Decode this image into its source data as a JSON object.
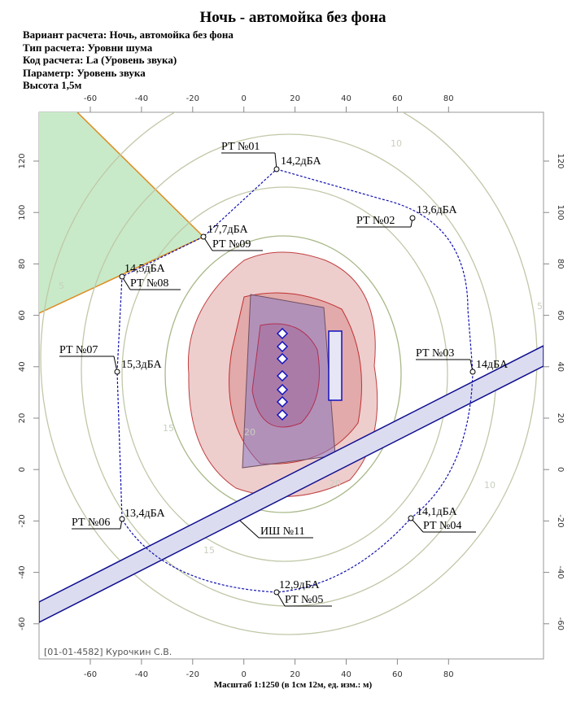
{
  "header": {
    "title": "Ночь - автомойка без фона",
    "lines": [
      "Вариант расчета: Ночь, автомойка без фона",
      "Тип расчета: Уровни шума",
      "Код расчета: La (Уровень звука)",
      "Параметр: Уровень звука",
      "Высота 1,5м"
    ]
  },
  "axis": {
    "x_labels": [
      "-60",
      "-40",
      "-20",
      "0",
      "20",
      "40",
      "60",
      "80"
    ],
    "y_labels": [
      "120",
      "100",
      "80",
      "60",
      "40",
      "20",
      "0",
      "-20",
      "-40",
      "-60"
    ]
  },
  "points": [
    {
      "label": "РТ №01",
      "value": "14,2дБА"
    },
    {
      "label": "РТ №02",
      "value": "13,6дБА"
    },
    {
      "label": "РТ №03",
      "value": "14дБА"
    },
    {
      "label": "РТ №04",
      "value": "14,1дБА"
    },
    {
      "label": "РТ №05",
      "value": "12,9дБА"
    },
    {
      "label": "РТ №06",
      "value": "13,4дБА"
    },
    {
      "label": "РТ №07",
      "value": "15,3дБА"
    },
    {
      "label": "РТ №08",
      "value": "14,5дБА"
    },
    {
      "label": "РТ №09",
      "value": "17,7дБА"
    }
  ],
  "source": {
    "label": "ИШ №11"
  },
  "contour_labels": [
    "20",
    "20",
    "15",
    "15",
    "10",
    "10",
    "5",
    "5"
  ],
  "footer": {
    "author": "[01-01-4582] Курочкин С.В.",
    "scale": "Масштаб 1:1250 (в 1см 12м, ед. изм.: м)"
  }
}
